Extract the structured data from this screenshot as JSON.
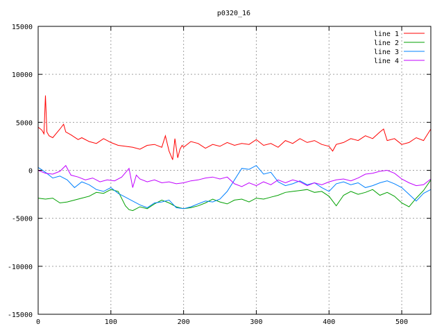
{
  "chart_data": {
    "type": "line",
    "title": "p0320_16",
    "xlim": [
      0,
      540
    ],
    "ylim": [
      -15000,
      15000
    ],
    "x_ticks": [
      0,
      100,
      200,
      300,
      400,
      500
    ],
    "y_ticks": [
      -15000,
      -10000,
      -5000,
      0,
      5000,
      10000,
      15000
    ],
    "grid": true,
    "legend_position": "top-right",
    "series": [
      {
        "name": "line 1",
        "color": "#ff0000",
        "x": [
          0,
          5,
          8,
          10,
          12,
          15,
          20,
          30,
          35,
          38,
          45,
          55,
          60,
          70,
          80,
          90,
          100,
          110,
          120,
          130,
          140,
          150,
          160,
          170,
          175,
          180,
          185,
          188,
          192,
          195,
          198,
          200,
          210,
          220,
          230,
          240,
          250,
          260,
          270,
          280,
          290,
          300,
          310,
          320,
          330,
          340,
          350,
          360,
          370,
          380,
          390,
          400,
          405,
          410,
          420,
          430,
          440,
          450,
          460,
          470,
          475,
          480,
          490,
          500,
          510,
          520,
          530,
          540
        ],
        "values": [
          4500,
          4200,
          3800,
          7800,
          4000,
          3600,
          3400,
          4300,
          4800,
          4000,
          3700,
          3200,
          3400,
          3000,
          2800,
          3300,
          2900,
          2600,
          2500,
          2400,
          2200,
          2600,
          2700,
          2400,
          3600,
          2000,
          1100,
          3300,
          1300,
          2200,
          2600,
          2400,
          3000,
          2800,
          2300,
          2700,
          2500,
          2900,
          2600,
          2800,
          2700,
          3200,
          2600,
          2800,
          2400,
          3100,
          2800,
          3300,
          2900,
          3100,
          2700,
          2500,
          2000,
          2700,
          2900,
          3300,
          3100,
          3600,
          3300,
          4000,
          4300,
          3100,
          3300,
          2700,
          2900,
          3400,
          3100,
          4300
        ]
      },
      {
        "name": "line 2",
        "color": "#00a000",
        "x": [
          0,
          10,
          20,
          30,
          40,
          50,
          60,
          70,
          80,
          90,
          100,
          110,
          120,
          125,
          130,
          140,
          150,
          160,
          170,
          180,
          190,
          200,
          210,
          220,
          230,
          240,
          250,
          260,
          270,
          280,
          290,
          300,
          310,
          320,
          330,
          340,
          350,
          360,
          370,
          380,
          390,
          400,
          410,
          420,
          430,
          440,
          450,
          460,
          470,
          480,
          490,
          500,
          510,
          520,
          530,
          540
        ],
        "values": [
          -2900,
          -3000,
          -2900,
          -3400,
          -3300,
          -3100,
          -2900,
          -2700,
          -2300,
          -2400,
          -2000,
          -2200,
          -3700,
          -4100,
          -4200,
          -3800,
          -4000,
          -3500,
          -3100,
          -3400,
          -3800,
          -4000,
          -3900,
          -3700,
          -3400,
          -3000,
          -3300,
          -3500,
          -3100,
          -3000,
          -3300,
          -2900,
          -3000,
          -2800,
          -2600,
          -2300,
          -2200,
          -2100,
          -2000,
          -2300,
          -2200,
          -2700,
          -3700,
          -2600,
          -2200,
          -2500,
          -2300,
          -2000,
          -2600,
          -2300,
          -2700,
          -3400,
          -3800,
          -2900,
          -2100,
          -1000
        ]
      },
      {
        "name": "line 3",
        "color": "#0080ff",
        "x": [
          0,
          10,
          20,
          30,
          40,
          50,
          60,
          70,
          80,
          90,
          100,
          110,
          120,
          130,
          140,
          150,
          160,
          170,
          180,
          190,
          200,
          210,
          220,
          230,
          240,
          250,
          260,
          270,
          280,
          290,
          300,
          310,
          320,
          330,
          340,
          350,
          360,
          370,
          380,
          390,
          400,
          410,
          420,
          430,
          440,
          450,
          460,
          470,
          480,
          490,
          500,
          510,
          520,
          530,
          540
        ],
        "values": [
          300,
          -200,
          -800,
          -600,
          -1000,
          -1800,
          -1200,
          -1500,
          -2000,
          -2200,
          -1800,
          -2400,
          -2800,
          -3200,
          -3600,
          -3900,
          -3400,
          -3300,
          -3100,
          -3900,
          -4000,
          -3800,
          -3500,
          -3200,
          -3300,
          -3000,
          -2200,
          -1000,
          200,
          100,
          500,
          -400,
          -200,
          -1200,
          -1600,
          -1400,
          -1100,
          -1500,
          -1300,
          -1800,
          -2200,
          -1400,
          -1200,
          -1500,
          -1300,
          -1800,
          -1600,
          -1300,
          -1100,
          -1400,
          -1800,
          -2500,
          -3200,
          -2400,
          -2000
        ]
      },
      {
        "name": "line 4",
        "color": "#c000ff",
        "x": [
          0,
          10,
          20,
          30,
          38,
          45,
          55,
          65,
          75,
          85,
          95,
          105,
          115,
          125,
          130,
          135,
          140,
          150,
          160,
          170,
          180,
          190,
          200,
          210,
          220,
          230,
          240,
          250,
          260,
          270,
          280,
          290,
          300,
          310,
          320,
          330,
          340,
          350,
          360,
          370,
          380,
          390,
          400,
          410,
          420,
          430,
          440,
          450,
          460,
          470,
          480,
          490,
          500,
          510,
          520,
          530,
          540
        ],
        "values": [
          0,
          -300,
          -400,
          -100,
          500,
          -500,
          -700,
          -1000,
          -800,
          -1200,
          -1000,
          -1100,
          -700,
          200,
          -1800,
          -500,
          -900,
          -1200,
          -1000,
          -1300,
          -1200,
          -1400,
          -1300,
          -1100,
          -1000,
          -800,
          -700,
          -900,
          -700,
          -1400,
          -1700,
          -1300,
          -1600,
          -1200,
          -1500,
          -1000,
          -1300,
          -1000,
          -1200,
          -1600,
          -1300,
          -1500,
          -1200,
          -1000,
          -900,
          -1100,
          -800,
          -400,
          -300,
          -100,
          0,
          -300,
          -900,
          -1300,
          -1600,
          -1500,
          -900
        ]
      }
    ]
  }
}
